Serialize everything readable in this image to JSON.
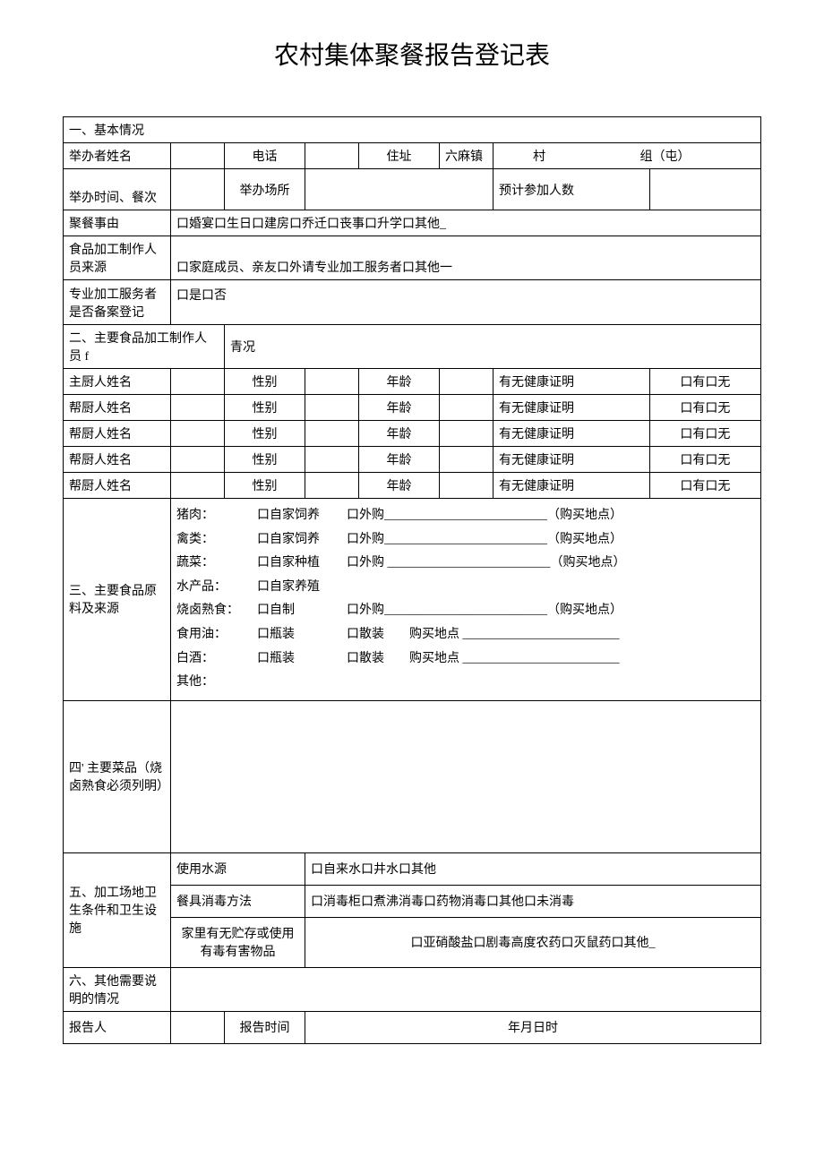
{
  "title": "农村集体聚餐报告登记表",
  "section1": {
    "header": "一、基本情况",
    "host_name_label": "举办者姓名",
    "phone_label": "电话",
    "address_label": "住址",
    "town": "六麻镇",
    "village_label": "村",
    "group_label": "组（屯）",
    "time_label": "举办时间、餐次",
    "venue_label": "举办场所",
    "expected_label": "预计参加人数",
    "reason_label": "聚餐事由",
    "reason_value": "口婚宴口生日口建房口乔迁口丧事口升学口其他_",
    "worker_source_label": "食品加工制作人员来源",
    "worker_source_value": "口家庭成员、亲友口外请专业加工服务者口其他一",
    "pro_registered_label": "专业加工服务者是否备案登记",
    "pro_registered_value": "口是口否"
  },
  "section2": {
    "header_a": "二、主要食品加工制作人员 f",
    "header_b": "青况",
    "rows": [
      {
        "role": "主厨人姓名"
      },
      {
        "role": "帮厨人姓名"
      },
      {
        "role": "帮厨人姓名"
      },
      {
        "role": "帮厨人姓名"
      },
      {
        "role": "帮厨人姓名"
      }
    ],
    "gender_label": "性别",
    "age_label": "年龄",
    "cert_label": "有无健康证明",
    "cert_value": "口有口无"
  },
  "section3": {
    "label": "三、主要食品原料及来源",
    "lines": [
      {
        "item": "猪肉：",
        "src": "口自家饲养",
        "tail": "口外购__________________________（购买地点）"
      },
      {
        "item": "禽类：",
        "src": "口自家饲养",
        "tail": "口外购__________________________（购买地点）"
      },
      {
        "item": "蔬菜：",
        "src": "口自家种植",
        "tail": "口外购 __________________________（购买地点）"
      },
      {
        "item": "水产品：",
        "src": "口自家养殖",
        "tail": ""
      },
      {
        "item": "烧卤熟食：",
        "src": "口自制",
        "tail": "口外购__________________________（购买地点）"
      },
      {
        "item": "食用油：",
        "src": "口瓶装",
        "tail": "口散装　　购买地点 _________________________"
      },
      {
        "item": "白酒：",
        "src": "口瓶装",
        "tail": "口散装　　购买地点 _________________________"
      },
      {
        "item": "其他：",
        "src": "",
        "tail": ""
      }
    ]
  },
  "section4": {
    "label": "四' 主要菜品（烧卤熟食必须列明）"
  },
  "section5": {
    "label": "五、加工场地卫生条件和卫生设施",
    "water_label": "使用水源",
    "water_value": "口自来水口井水口其他",
    "disinfect_label": "餐具消毒方法",
    "disinfect_value": "口消毒柜口煮沸消毒口药物消毒口其他口未消毒",
    "hazard_label": "家里有无贮存或使用有毒有害物品",
    "hazard_value": "口亚硝酸盐口剧毒高度农药口灭鼠药口其他_"
  },
  "section6": {
    "label": "六、其他需要说明的情况"
  },
  "footer": {
    "reporter_label": "报告人",
    "report_time_label": "报告时间",
    "report_time_value": "年月日时"
  }
}
